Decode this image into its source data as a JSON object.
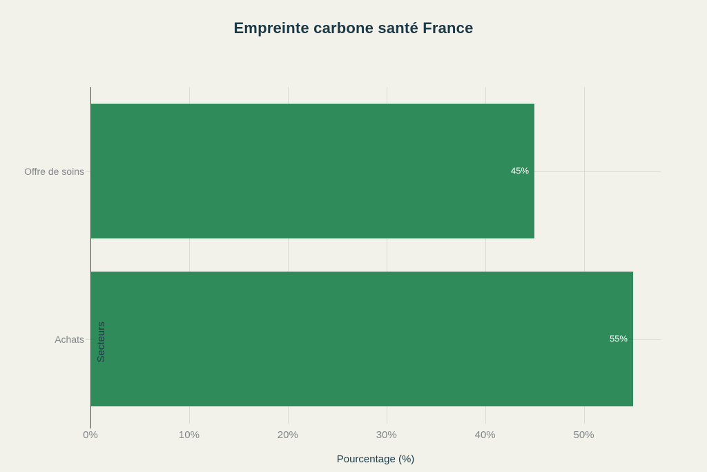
{
  "chart_data": {
    "type": "bar",
    "orientation": "horizontal",
    "title": "Empreinte carbone santé France",
    "xlabel": "Pourcentage (%)",
    "ylabel": "Secteurs",
    "categories": [
      "Offre de soins",
      "Achats"
    ],
    "values": [
      45,
      55
    ],
    "value_labels": [
      "45%",
      "55%"
    ],
    "xlim": [
      0,
      57.8
    ],
    "xticks": [
      0,
      10,
      20,
      30,
      40,
      50
    ],
    "xtick_labels": [
      "0%",
      "10%",
      "20%",
      "30%",
      "40%",
      "50%"
    ],
    "grid": true,
    "legend": "none",
    "bar_band_fraction": 0.8
  },
  "style": {
    "background_color": "#f2f1ea",
    "bar_color": "#2f8b5a",
    "title_color": "#1c3a45",
    "axis_title_color": "#1c3a45",
    "tick_label_color": "#82878a",
    "gridline_color": "#dcdbd4",
    "axis_line_color": "#4e4d47",
    "value_label_color": "#ffffff"
  }
}
